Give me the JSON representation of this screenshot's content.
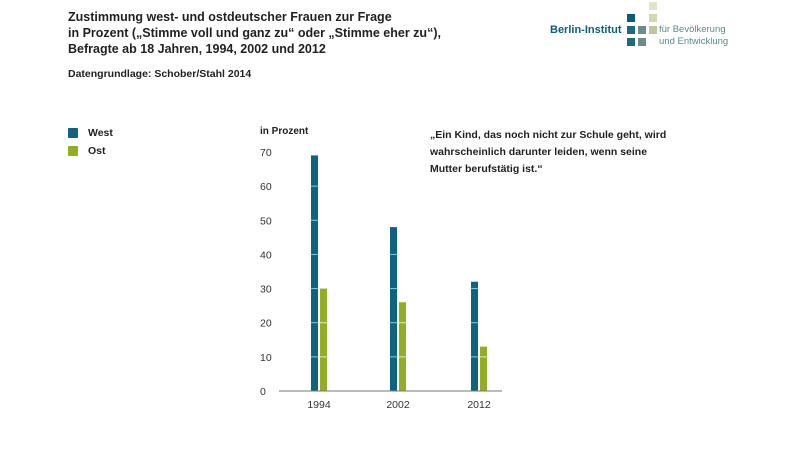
{
  "title_lines": [
    "Zustimmung west- und ostdeutscher Frauen zur Frage",
    "in Prozent („Stimme voll und ganz zu“ oder „Stimme eher zu“),",
    "Befragte ab 18 Jahren, 1994, 2002 und 2012"
  ],
  "source": "Datengrundlage: Schober/Stahl 2014",
  "quote_lines": [
    "„Ein Kind, das noch nicht zur Schule geht, wird",
    "wahrscheinlich darunter leiden, wenn seine",
    "Mutter berufstätig ist.“"
  ],
  "logo": {
    "name": "Berlin-Institut",
    "sub1": "für Bevölkerung",
    "sub2": "und Entwicklung"
  },
  "colors": {
    "west": "#0e6383",
    "ost": "#93ad25"
  },
  "chart_data": {
    "type": "bar",
    "title": "Zustimmung west- und ostdeutscher Frauen zur Frage",
    "ylabel": "in Prozent",
    "xlabel": "",
    "categories": [
      "1994",
      "2002",
      "2012"
    ],
    "series": [
      {
        "name": "West",
        "values": [
          69,
          48,
          32
        ]
      },
      {
        "name": "Ost",
        "values": [
          30,
          26,
          13
        ]
      }
    ],
    "ylim": [
      0,
      70
    ],
    "yticks": [
      "0",
      "10",
      "20",
      "30",
      "40",
      "50",
      "60",
      "70"
    ],
    "legend": "top-left"
  }
}
